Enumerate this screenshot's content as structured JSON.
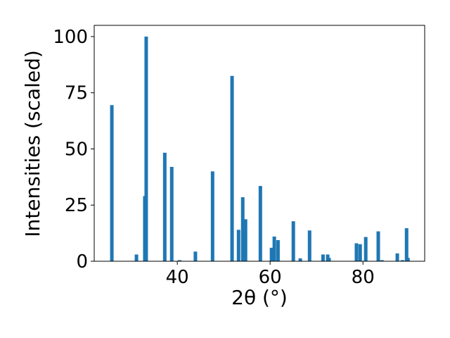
{
  "chart_data": {
    "type": "bar",
    "x_label": "2θ (°)",
    "y_label": "Intensities (scaled)",
    "x": [
      25.9,
      31.2,
      33.0,
      33.3,
      37.3,
      38.8,
      40.5,
      43.9,
      47.6,
      51.8,
      53.2,
      54.1,
      54.7,
      57.9,
      60.3,
      60.9,
      61.7,
      65.0,
      66.5,
      68.5,
      71.4,
      72.4,
      72.7,
      78.6,
      79.4,
      80.6,
      83.3,
      84.1,
      87.4,
      88.5,
      89.4,
      89.7
    ],
    "values": [
      69.5,
      3,
      29,
      100,
      48.3,
      42,
      0.5,
      4.3,
      40,
      82.5,
      14,
      28.5,
      18.7,
      33.5,
      6,
      11,
      9.4,
      17.8,
      1.3,
      13.7,
      3,
      3,
      1.5,
      8,
      7.6,
      10.8,
      13.3,
      0.5,
      3.5,
      0.5,
      14.7,
      1.5
    ],
    "color": "#1f77b4",
    "xlim": [
      22.1,
      93.3
    ],
    "xticks": [
      40,
      60,
      80
    ],
    "ylim": [
      0,
      105
    ],
    "yticks": [
      0,
      25,
      50,
      75,
      100
    ],
    "grid": false
  }
}
